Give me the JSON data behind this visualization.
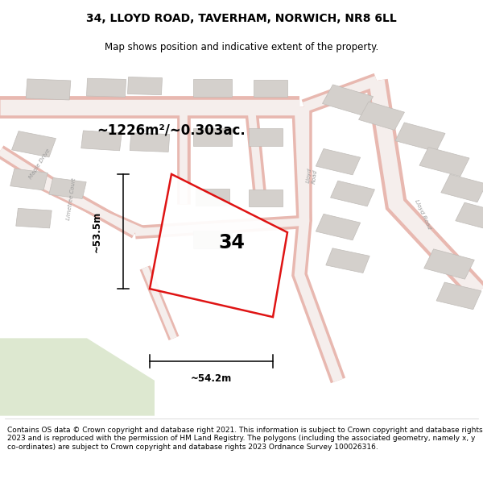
{
  "title": "34, LLOYD ROAD, TAVERHAM, NORWICH, NR8 6LL",
  "subtitle": "Map shows position and indicative extent of the property.",
  "footer": "Contains OS data © Crown copyright and database right 2021. This information is subject to Crown copyright and database rights 2023 and is reproduced with the permission of HM Land Registry. The polygons (including the associated geometry, namely x, y co-ordinates) are subject to Crown copyright and database rights 2023 Ordnance Survey 100026316.",
  "area_label": "~1226m²/~0.303ac.",
  "number_label": "34",
  "dim_width": "~54.2m",
  "dim_height": "~53.5m",
  "map_bg": "#f2f0ee",
  "green_bg": "#dde8d0",
  "road_outer": "#e8b8b0",
  "road_inner": "#f5eeec",
  "building_fill": "#d4d0cc",
  "building_edge": "#c0bcb8",
  "red_color": "#dd0000",
  "title_fontsize": 10,
  "subtitle_fontsize": 8.5,
  "footer_fontsize": 6.5,
  "road_label_color": "#999999",
  "dim_color": "#000000"
}
